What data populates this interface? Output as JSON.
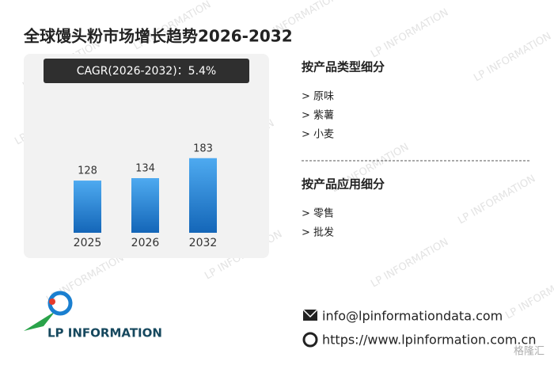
{
  "chart_data": {
    "type": "bar",
    "title": "全球馒头粉市场增长趋势2026-2032",
    "subtitle": "CAGR(2026-2032)：5.4%",
    "categories": [
      "2025",
      "2026",
      "2032"
    ],
    "values": [
      128,
      134,
      183
    ]
  },
  "segments": {
    "type_title": "按产品类型细分",
    "type_items": [
      "> 原味",
      "> 紫薯",
      "> 小麦"
    ],
    "application_title": "按产品应用细分",
    "application_items": [
      "> 零售",
      "> 批发"
    ]
  },
  "logo": "LP INFORMATION",
  "contact": {
    "email": "info@lpinformationdata.com",
    "website": "https://www.lpinformation.com.cn"
  },
  "watermark": "LP INFORMATION",
  "corner_mark": "格隆汇"
}
